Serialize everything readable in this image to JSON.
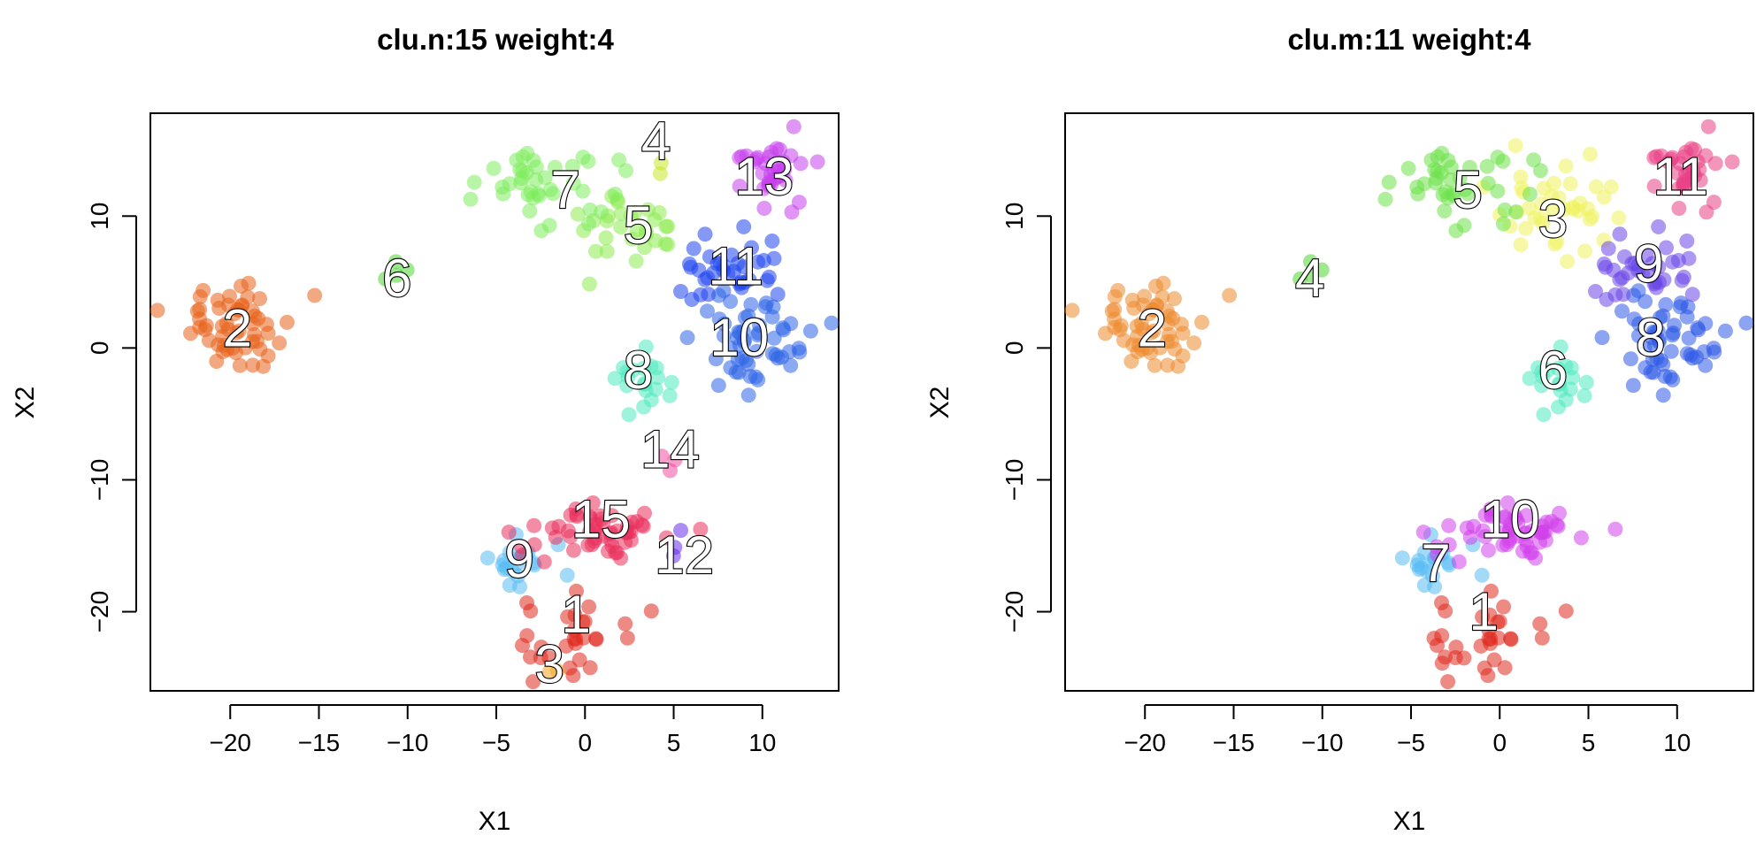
{
  "chart_data": [
    {
      "type": "scatter",
      "title": "clu.n:15 weight:4",
      "xlabel": "X1",
      "ylabel": "X2",
      "xticks": [
        -20,
        -15,
        -10,
        -5,
        0,
        5,
        10
      ],
      "yticks": [
        -20,
        -10,
        0,
        10
      ],
      "xlim": [
        -24.5,
        14.3
      ],
      "ylim": [
        -26.0,
        17.8
      ],
      "grid": false,
      "legend": "none",
      "clusters": [
        {
          "label": "1",
          "color": "#E0291F",
          "center": [
            -1.0,
            -22.0
          ],
          "spread": [
            1.7,
            2.0
          ],
          "n": 30,
          "label_pos": [
            -0.5,
            -20.2
          ]
        },
        {
          "label": "2",
          "color": "#E8621A",
          "center": [
            -19.6,
            1.8
          ],
          "spread": [
            2.0,
            2.1
          ],
          "n": 55,
          "label_pos": [
            -19.6,
            1.5
          ]
        },
        {
          "label": "3",
          "color": "#F5A623",
          "center": [
            -2.2,
            -24.5
          ],
          "spread": [
            0.3,
            0.3
          ],
          "n": 2,
          "label_pos": [
            -2.0,
            -24.0
          ]
        },
        {
          "label": "4",
          "color": "#C9E82A",
          "center": [
            4.2,
            14.0
          ],
          "spread": [
            0.5,
            0.5
          ],
          "n": 2,
          "label_pos": [
            4.0,
            15.7
          ]
        },
        {
          "label": "5",
          "color": "#8CEB50",
          "center": [
            2.5,
            8.5
          ],
          "spread": [
            2.3,
            2.6
          ],
          "n": 30,
          "label_pos": [
            3.0,
            9.3
          ]
        },
        {
          "label": "6",
          "color": "#4FD631",
          "center": [
            -10.5,
            5.4
          ],
          "spread": [
            0.7,
            0.9
          ],
          "n": 4,
          "label_pos": [
            -10.6,
            5.3
          ]
        },
        {
          "label": "7",
          "color": "#7EEC5C",
          "center": [
            -2.0,
            12.0
          ],
          "spread": [
            2.7,
            2.2
          ],
          "n": 40,
          "label_pos": [
            -1.1,
            12.0
          ]
        },
        {
          "label": "8",
          "color": "#4FEAC0",
          "center": [
            3.0,
            -2.5
          ],
          "spread": [
            1.4,
            1.9
          ],
          "n": 20,
          "label_pos": [
            3.0,
            -1.7
          ]
        },
        {
          "label": "9",
          "color": "#55BCF3",
          "center": [
            -3.5,
            -16.5
          ],
          "spread": [
            1.4,
            1.3
          ],
          "n": 20,
          "label_pos": [
            -3.7,
            -16.0
          ]
        },
        {
          "label": "10",
          "color": "#2D65E6",
          "center": [
            9.2,
            0.8
          ],
          "spread": [
            2.2,
            2.5
          ],
          "n": 55,
          "label_pos": [
            8.7,
            0.8
          ]
        },
        {
          "label": "11",
          "color": "#1F46EE",
          "center": [
            8.0,
            6.0
          ],
          "spread": [
            2.0,
            2.1
          ],
          "n": 35,
          "label_pos": [
            8.5,
            6.2
          ]
        },
        {
          "label": "12",
          "color": "#6A2EEB",
          "center": [
            5.5,
            -15.0
          ],
          "spread": [
            0.4,
            1.4
          ],
          "n": 3,
          "label_pos": [
            5.6,
            -15.7
          ]
        },
        {
          "label": "13",
          "color": "#C640EC",
          "center": [
            10.2,
            13.3
          ],
          "spread": [
            1.6,
            1.7
          ],
          "n": 35,
          "label_pos": [
            10.1,
            13.0
          ]
        },
        {
          "label": "14",
          "color": "#F04EA4",
          "center": [
            4.9,
            -8.5
          ],
          "spread": [
            0.4,
            1.0
          ],
          "n": 3,
          "label_pos": [
            4.8,
            -7.7
          ]
        },
        {
          "label": "15",
          "color": "#EA2F5C",
          "center": [
            0.8,
            -13.8
          ],
          "spread": [
            2.6,
            1.6
          ],
          "n": 55,
          "label_pos": [
            0.9,
            -13.0
          ]
        }
      ]
    },
    {
      "type": "scatter",
      "title": "clu.m:11 weight:4",
      "xlabel": "X1",
      "ylabel": "X2",
      "xticks": [
        -20,
        -15,
        -10,
        -5,
        0,
        5,
        10
      ],
      "yticks": [
        -20,
        -10,
        0,
        10
      ],
      "xlim": [
        -24.5,
        14.3
      ],
      "ylim": [
        -26.0,
        17.8
      ],
      "grid": false,
      "legend": "none",
      "clusters": [
        {
          "label": "1",
          "color": "#E0291F",
          "center": [
            -1.0,
            -22.0
          ],
          "spread": [
            1.7,
            2.0
          ],
          "n": 32,
          "label_pos": [
            -0.9,
            -20.0
          ]
        },
        {
          "label": "2",
          "color": "#EC8A2D",
          "center": [
            -19.6,
            1.8
          ],
          "spread": [
            2.0,
            2.1
          ],
          "n": 55,
          "label_pos": [
            -19.6,
            1.5
          ]
        },
        {
          "label": "3",
          "color": "#EFF35C",
          "center": [
            3.0,
            10.0
          ],
          "spread": [
            2.4,
            2.8
          ],
          "n": 40,
          "label_pos": [
            3.0,
            9.8
          ]
        },
        {
          "label": "4",
          "color": "#4FD631",
          "center": [
            -10.5,
            5.4
          ],
          "spread": [
            0.7,
            0.9
          ],
          "n": 4,
          "label_pos": [
            -10.7,
            5.3
          ]
        },
        {
          "label": "5",
          "color": "#6EE24A",
          "center": [
            -2.0,
            12.0
          ],
          "spread": [
            2.7,
            2.2
          ],
          "n": 40,
          "label_pos": [
            -1.8,
            12.0
          ]
        },
        {
          "label": "6",
          "color": "#4FEAC0",
          "center": [
            3.0,
            -2.5
          ],
          "spread": [
            1.4,
            1.9
          ],
          "n": 20,
          "label_pos": [
            3.0,
            -1.7
          ]
        },
        {
          "label": "7",
          "color": "#55BCF3",
          "center": [
            -3.5,
            -16.5
          ],
          "spread": [
            1.4,
            1.3
          ],
          "n": 20,
          "label_pos": [
            -3.6,
            -16.3
          ]
        },
        {
          "label": "8",
          "color": "#2D5AE6",
          "center": [
            9.2,
            0.8
          ],
          "spread": [
            2.2,
            2.5
          ],
          "n": 55,
          "label_pos": [
            8.5,
            0.8
          ]
        },
        {
          "label": "9",
          "color": "#6A45E8",
          "center": [
            8.0,
            6.0
          ],
          "spread": [
            2.0,
            2.1
          ],
          "n": 35,
          "label_pos": [
            8.4,
            6.4
          ]
        },
        {
          "label": "10",
          "color": "#D13FEB",
          "center": [
            0.8,
            -13.8
          ],
          "spread": [
            2.6,
            1.6
          ],
          "n": 55,
          "label_pos": [
            0.6,
            -13.0
          ]
        },
        {
          "label": "11",
          "color": "#EA3F85",
          "center": [
            10.2,
            13.3
          ],
          "spread": [
            1.6,
            1.7
          ],
          "n": 35,
          "label_pos": [
            10.2,
            13.0
          ]
        }
      ]
    }
  ]
}
